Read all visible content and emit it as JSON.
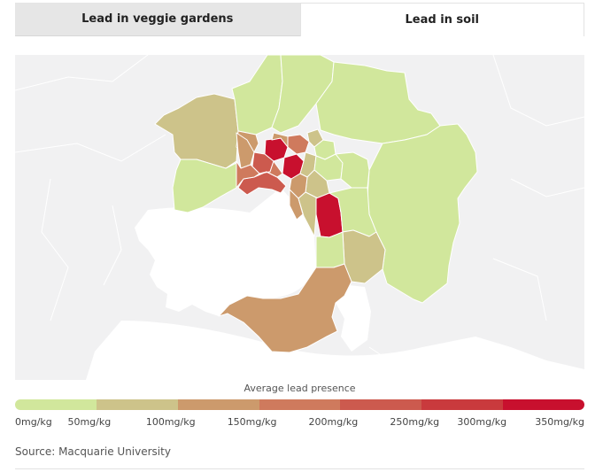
{
  "tabs": [
    {
      "label": "Lead in veggie gardens",
      "active": false
    },
    {
      "label": "Lead in soil",
      "active": true
    }
  ],
  "legend": {
    "title": "Average lead presence",
    "colors": [
      "#d1e79c",
      "#cdc38a",
      "#cc9a6c",
      "#cf7a5d",
      "#cc5a4e",
      "#c93a3d",
      "#c8102e"
    ],
    "labels": [
      "0mg/kg",
      "50mg/kg",
      "100mg/kg",
      "150mg/kg",
      "200mg/kg",
      "250mg/kg",
      "300mg/kg",
      "350mg/kg"
    ]
  },
  "map": {
    "background": "#f1f1f2",
    "land_color": "#ffffff",
    "region_color_classes": {
      "0-50": "#d1e79c",
      "50-100": "#cdc38a",
      "100-150": "#cc9a6c",
      "150-200": "#cf7a5d",
      "200-250": "#cc5a4e",
      "300-350": "#c8102e"
    }
  },
  "source": "Source: Macquarie University"
}
